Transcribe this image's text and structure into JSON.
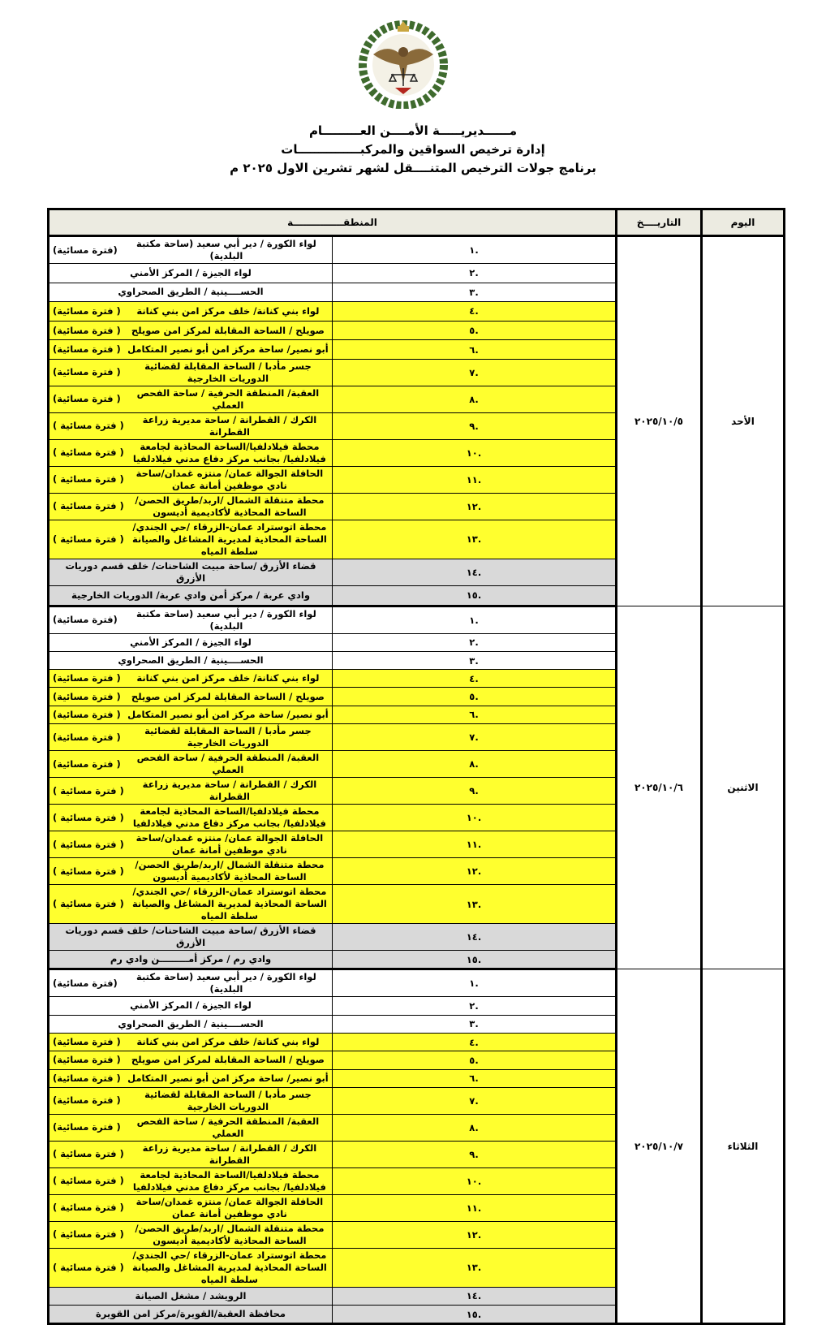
{
  "header": {
    "line1": "مــــــديريـــــة الأمــــن العـــــــــام",
    "line2": "إدارة ترخيص السواقين والمركبـــــــــــــــات",
    "line3": "برنامج جولات الترخيص المتنــــقل لشهر تشرين الاول ٢٠٢٥ م"
  },
  "emblem": {
    "description_text": "",
    "colors": {
      "green": "#3f6b2e",
      "gold": "#c9a640",
      "red": "#b3261e"
    }
  },
  "table": {
    "col_day": "اليوم",
    "col_date": "التاريــــخ",
    "col_area": "المنطقـــــــــــــــة"
  },
  "colors": {
    "highlight_yellow": "#ffff2e",
    "highlight_gray": "#d9d9d9",
    "header_bg": "#ecebe1"
  },
  "common_rows": [
    {
      "num": ".١",
      "text": "لواء الكورة / دير أبي سعيد (ساحة مكتبة البلدية)",
      "note": "(فترة مسائية)",
      "style": "white"
    },
    {
      "num": ".٢",
      "text": "لواء الجيزة / المركز الأمني",
      "note": "",
      "style": "white"
    },
    {
      "num": ".٣",
      "text": "الحســــينية / الطريق الصحراوي",
      "note": "",
      "style": "white"
    },
    {
      "num": ".٤",
      "text": "لواء بني كنانة/ خلف مركز امن بني كنانة",
      "note": "( فترة مسائية)",
      "style": "yellow"
    },
    {
      "num": ".٥",
      "text": "صويلح / الساحة المقابلة لمركز امن صويلح",
      "note": "( فترة مسائية)",
      "style": "yellow"
    },
    {
      "num": ".٦",
      "text": "أبو نصير/ ساحة مركز امن أبو نصير المتكامل",
      "note": "( فترة مسائية)",
      "style": "yellow"
    },
    {
      "num": ".٧",
      "text": "جسر مأدبا / الساحة المقابلة لقضائية الدوريات الخارجية",
      "note": "( فترة مسائية)",
      "style": "yellow"
    },
    {
      "num": ".٨",
      "text": "العقبة/ المنطقة الحرفية / ساحة الفحص العملي",
      "note": "( فترة مسائية)",
      "style": "yellow"
    },
    {
      "num": ".٩",
      "text": "الكرك / القطرانة / ساحة مديرية زراعة القطرانة",
      "note": "( فترة مسائية )",
      "style": "yellow"
    },
    {
      "num": ".١٠",
      "text": "محطة فيلادلفيا/الساحة المحاذية لجامعة فيلادلفيا/ بجانب مركز دفاع مدني فيلادلفيا",
      "note": "( فترة مسائية )",
      "style": "yellow"
    },
    {
      "num": ".١١",
      "text": "الحافلة الجوالة عمان/ منتزه غمدان/ساحة نادي موظفين أمانة عمان",
      "note": "( فترة مسائية )",
      "style": "yellow"
    },
    {
      "num": ".١٢",
      "text": "محطة متنقلة الشمال /اربد/طريق الحصن/ الساحة المحاذية لأكاديمية أديسون",
      "note": "( فترة مسائية )",
      "style": "yellow"
    },
    {
      "num": ".١٣",
      "text": "محطة اتوستراد عمان-الزرقاء /حي الجندي/ الساحة المحاذية لمديرية المشاغل والصيانة سلطة المياه",
      "note": "( فترة مسائية )",
      "style": "yellow"
    }
  ],
  "days": [
    {
      "day": "الأحد",
      "date": "٢٠٢٥/١٠/٥",
      "extra_rows": [
        {
          "num": ".١٤",
          "text": "قضاء الأزرق /ساحة مبيت الشاحنات/ خلف قسم دوريات الأزرق",
          "note": "",
          "style": "gray"
        },
        {
          "num": ".١٥",
          "text": "وادي عربة / مركز أمن وادي عربة/ الدوريات الخارجية",
          "note": "",
          "style": "gray"
        }
      ]
    },
    {
      "day": "الاثنين",
      "date": "٢٠٢٥/١٠/٦",
      "extra_rows": [
        {
          "num": ".١٤",
          "text": "قضاء الأزرق /ساحة مبيت الشاحنات/ خلف قسم دوريات الأزرق",
          "note": "",
          "style": "gray"
        },
        {
          "num": ".١٥",
          "text": "وادي رم / مركز أمـــــــــن وادي رم",
          "note": "",
          "style": "gray"
        }
      ]
    },
    {
      "day": "الثلاثاء",
      "date": "٢٠٢٥/١٠/٧",
      "extra_rows": [
        {
          "num": ".١٤",
          "text": "الرويشد / مشغل الصيانة",
          "note": "",
          "style": "gray"
        },
        {
          "num": ".١٥",
          "text": "محافظة العقبة/القويرة/مركز امن القويرة",
          "note": "",
          "style": "gray"
        }
      ]
    }
  ]
}
